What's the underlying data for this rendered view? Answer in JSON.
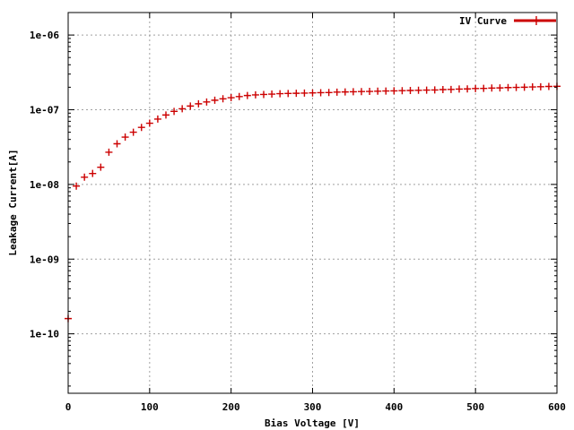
{
  "chart_data": {
    "type": "scatter",
    "title": "",
    "xlabel": "Bias Voltage [V]",
    "ylabel": "Leakage Current[A]",
    "xlim": [
      0,
      600
    ],
    "ylim": [
      1.6e-11,
      2e-06
    ],
    "y_scale": "log",
    "x_ticks": [
      0,
      100,
      200,
      300,
      400,
      500,
      600
    ],
    "x_tick_labels": [
      "0",
      "100",
      "200",
      "300",
      "400",
      "500",
      "600"
    ],
    "y_ticks": [
      1e-10,
      1e-09,
      1e-08,
      1e-07,
      1e-06
    ],
    "y_tick_labels": [
      "1e-10",
      "1e-09",
      "1e-08",
      "1e-07",
      "1e-06"
    ],
    "grid": true,
    "legend_position": "top-right",
    "series": [
      {
        "name": "IV Curve",
        "color": "#cc0000",
        "marker": "plus",
        "points": [
          [
            0,
            1.6e-10
          ],
          [
            10,
            9.5e-09
          ],
          [
            20,
            1.25e-08
          ],
          [
            30,
            1.4e-08
          ],
          [
            40,
            1.7e-08
          ],
          [
            50,
            2.7e-08
          ],
          [
            60,
            3.5e-08
          ],
          [
            70,
            4.3e-08
          ],
          [
            80,
            5e-08
          ],
          [
            90,
            5.8e-08
          ],
          [
            100,
            6.6e-08
          ],
          [
            110,
            7.5e-08
          ],
          [
            120,
            8.5e-08
          ],
          [
            130,
            9.5e-08
          ],
          [
            140,
            1.03e-07
          ],
          [
            150,
            1.12e-07
          ],
          [
            160,
            1.2e-07
          ],
          [
            170,
            1.27e-07
          ],
          [
            180,
            1.34e-07
          ],
          [
            190,
            1.4e-07
          ],
          [
            200,
            1.45e-07
          ],
          [
            210,
            1.5e-07
          ],
          [
            220,
            1.55e-07
          ],
          [
            230,
            1.58e-07
          ],
          [
            240,
            1.6e-07
          ],
          [
            250,
            1.62e-07
          ],
          [
            260,
            1.64e-07
          ],
          [
            270,
            1.65e-07
          ],
          [
            280,
            1.66e-07
          ],
          [
            290,
            1.67e-07
          ],
          [
            300,
            1.68e-07
          ],
          [
            310,
            1.69e-07
          ],
          [
            320,
            1.7e-07
          ],
          [
            330,
            1.72e-07
          ],
          [
            340,
            1.73e-07
          ],
          [
            350,
            1.74e-07
          ],
          [
            360,
            1.75e-07
          ],
          [
            370,
            1.76e-07
          ],
          [
            380,
            1.77e-07
          ],
          [
            390,
            1.78e-07
          ],
          [
            400,
            1.79e-07
          ],
          [
            410,
            1.8e-07
          ],
          [
            420,
            1.81e-07
          ],
          [
            430,
            1.82e-07
          ],
          [
            440,
            1.83e-07
          ],
          [
            450,
            1.84e-07
          ],
          [
            460,
            1.86e-07
          ],
          [
            470,
            1.87e-07
          ],
          [
            480,
            1.89e-07
          ],
          [
            490,
            1.9e-07
          ],
          [
            500,
            1.92e-07
          ],
          [
            510,
            1.93e-07
          ],
          [
            520,
            1.95e-07
          ],
          [
            530,
            1.96e-07
          ],
          [
            540,
            1.98e-07
          ],
          [
            550,
            1.99e-07
          ],
          [
            560,
            2e-07
          ],
          [
            570,
            2.02e-07
          ],
          [
            580,
            2.03e-07
          ],
          [
            590,
            2.05e-07
          ],
          [
            600,
            2.06e-07
          ]
        ]
      }
    ]
  }
}
